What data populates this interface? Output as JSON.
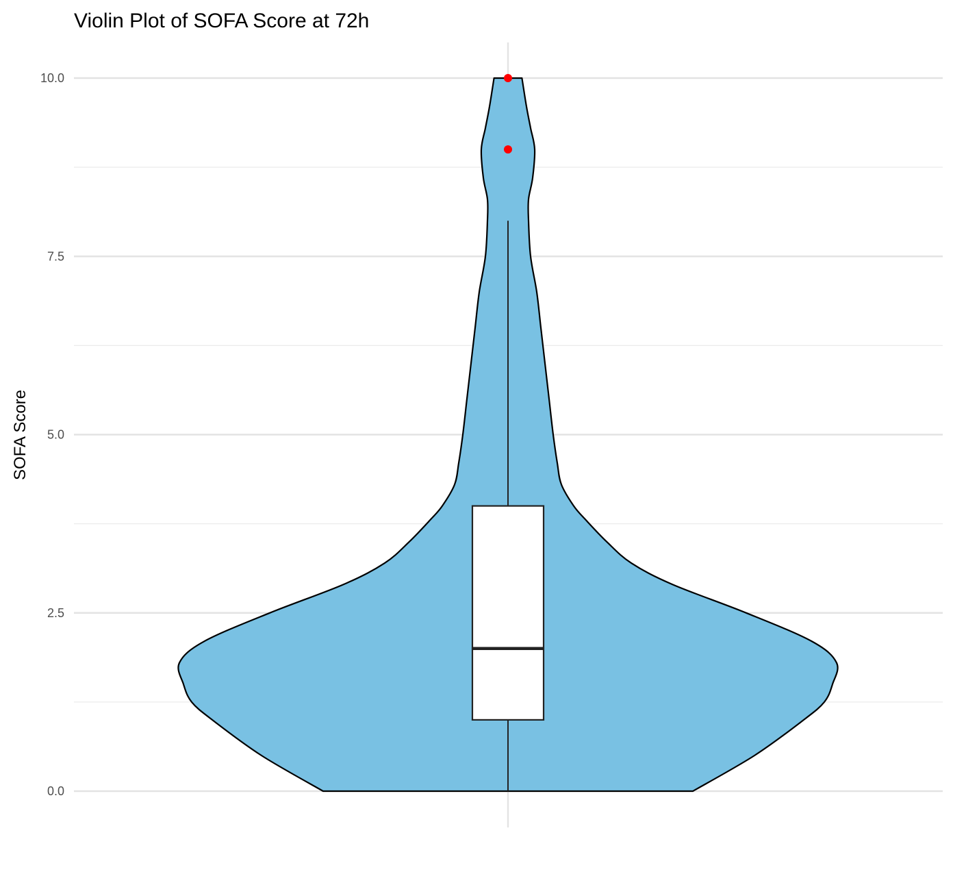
{
  "chart_data": {
    "type": "violin",
    "title": "Violin Plot of SOFA Score at 72h",
    "xlabel": "",
    "ylabel": "SOFA Score",
    "ylim": [
      -0.2,
      10.2
    ],
    "yticks": [
      0.0,
      2.5,
      5.0,
      7.5,
      10.0
    ],
    "ytick_labels": [
      "0.0",
      "2.5",
      "5.0",
      "7.5",
      "10.0"
    ],
    "grid": true,
    "violin": {
      "fill": "#79c1e3",
      "stroke": "#000000",
      "half_width_max": 0.8,
      "density_profile": [
        [
          0.0,
          0.45
        ],
        [
          0.5,
          0.6
        ],
        [
          1.0,
          0.72
        ],
        [
          1.25,
          0.77
        ],
        [
          1.5,
          0.79
        ],
        [
          1.8,
          0.8
        ],
        [
          2.1,
          0.74
        ],
        [
          2.5,
          0.58
        ],
        [
          2.9,
          0.4
        ],
        [
          3.2,
          0.3
        ],
        [
          3.5,
          0.24
        ],
        [
          3.8,
          0.19
        ],
        [
          4.0,
          0.16
        ],
        [
          4.3,
          0.13
        ],
        [
          4.6,
          0.12
        ],
        [
          5.0,
          0.11
        ],
        [
          5.5,
          0.1
        ],
        [
          6.0,
          0.09
        ],
        [
          6.5,
          0.08
        ],
        [
          7.0,
          0.07
        ],
        [
          7.5,
          0.055
        ],
        [
          8.0,
          0.05
        ],
        [
          8.3,
          0.05
        ],
        [
          8.6,
          0.06
        ],
        [
          9.0,
          0.065
        ],
        [
          9.3,
          0.055
        ],
        [
          9.6,
          0.045
        ],
        [
          10.0,
          0.034
        ]
      ]
    },
    "boxplot": {
      "q1": 1,
      "median": 2,
      "q3": 4,
      "whisker_low": 0,
      "whisker_high": 8,
      "fill": "#ffffff",
      "stroke": "#222222"
    },
    "outliers": {
      "values": [
        9,
        10
      ],
      "color": "#ff0000"
    }
  }
}
